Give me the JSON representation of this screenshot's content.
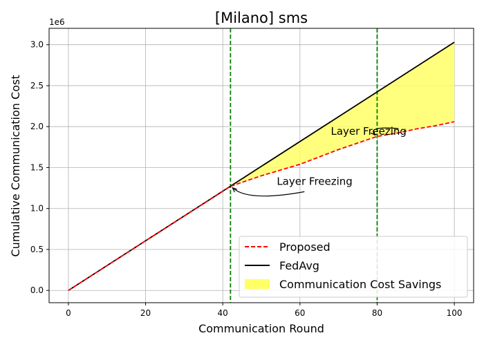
{
  "chart_data": {
    "type": "line",
    "title": "[Milano] sms",
    "xlabel": "Communication Round",
    "ylabel": "Cumulative Communication Cost",
    "y_offset_label": "1e6",
    "xlim": [
      -5,
      105
    ],
    "ylim": [
      -0.15,
      3.2
    ],
    "xticks": [
      0,
      20,
      40,
      60,
      80,
      100
    ],
    "yticks": [
      0.0,
      0.5,
      1.0,
      1.5,
      2.0,
      2.5,
      3.0
    ],
    "xtick_labels": [
      "0",
      "20",
      "40",
      "60",
      "80",
      "100"
    ],
    "ytick_labels": [
      "0.0",
      "0.5",
      "1.0",
      "1.5",
      "2.0",
      "2.5",
      "3.0"
    ],
    "y_scale_note": "values in millions (×1e6)",
    "grid": true,
    "legend_position": "lower-right",
    "series": [
      {
        "name": "Proposed",
        "color": "#ff0000",
        "style": "dashed",
        "x": [
          0,
          42,
          45,
          50,
          55,
          60,
          65,
          70,
          75,
          80,
          85,
          90,
          95,
          100
        ],
        "y": [
          0.0,
          1.27,
          1.32,
          1.4,
          1.47,
          1.54,
          1.63,
          1.72,
          1.8,
          1.88,
          1.92,
          1.97,
          2.01,
          2.06
        ]
      },
      {
        "name": "FedAvg",
        "color": "#000000",
        "style": "solid",
        "x": [
          0,
          100
        ],
        "y": [
          0.0,
          3.03
        ]
      }
    ],
    "fill": {
      "name": "Communication Cost Savings",
      "color": "#ffff66",
      "between": [
        "FedAvg",
        "Proposed"
      ],
      "x_start": 42
    },
    "vlines": [
      {
        "x": 42,
        "color": "#008000",
        "style": "dashed"
      },
      {
        "x": 80,
        "color": "#008000",
        "style": "dashed"
      }
    ],
    "annotations": [
      {
        "text": "Layer Freezing",
        "point": [
          42,
          1.27
        ],
        "text_at": [
          54,
          1.29
        ]
      },
      {
        "text": "Layer Freezing",
        "point": [
          80,
          1.88
        ],
        "text_at": [
          68,
          1.9
        ]
      }
    ]
  }
}
